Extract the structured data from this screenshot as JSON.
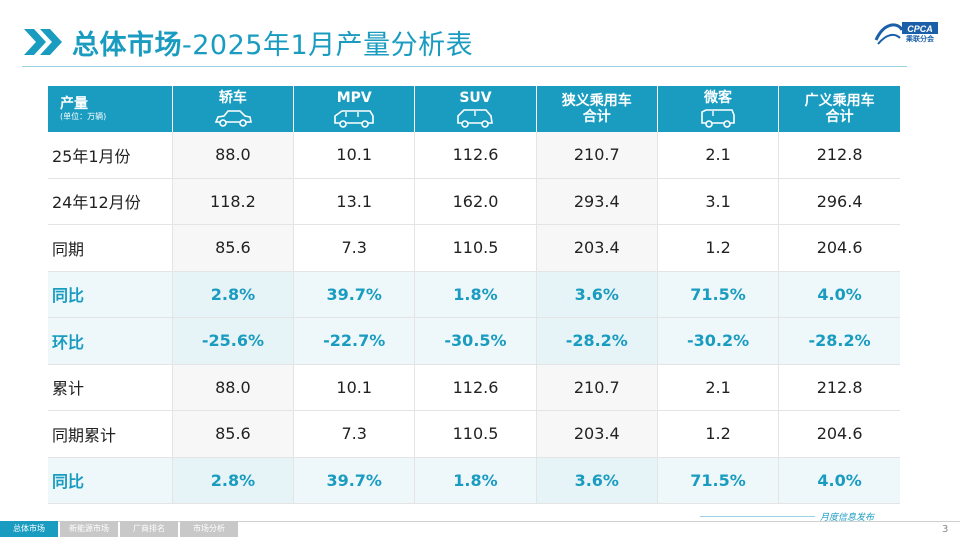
{
  "header": {
    "title_bold": "总体市场",
    "title_rest": "-2025年1月产量分析表",
    "logo_text": "CPCA",
    "logo_sub": "乘联分会"
  },
  "table": {
    "header_first": "产量",
    "header_unit": "(单位：万辆)",
    "columns": [
      {
        "line1": "轿车",
        "line2": "",
        "icon": "sedan-icon"
      },
      {
        "line1": "MPV",
        "line2": "",
        "icon": "mpv-icon"
      },
      {
        "line1": "SUV",
        "line2": "",
        "icon": "suv-icon"
      },
      {
        "line1": "狭义乘用车",
        "line2": "合计",
        "icon": ""
      },
      {
        "line1": "微客",
        "line2": "",
        "icon": "minivan-icon"
      },
      {
        "line1": "广义乘用车",
        "line2": "合计",
        "icon": ""
      }
    ],
    "rows": [
      {
        "label": "25年1月份",
        "values": [
          "88.0",
          "10.1",
          "112.6",
          "210.7",
          "2.1",
          "212.8"
        ],
        "highlight": false
      },
      {
        "label": "24年12月份",
        "values": [
          "118.2",
          "13.1",
          "162.0",
          "293.4",
          "3.1",
          "296.4"
        ],
        "highlight": false
      },
      {
        "label": "同期",
        "values": [
          "85.6",
          "7.3",
          "110.5",
          "203.4",
          "1.2",
          "204.6"
        ],
        "highlight": false
      },
      {
        "label": "同比",
        "values": [
          "2.8%",
          "39.7%",
          "1.8%",
          "3.6%",
          "71.5%",
          "4.0%"
        ],
        "highlight": true
      },
      {
        "label": "环比",
        "values": [
          "-25.6%",
          "-22.7%",
          "-30.5%",
          "-28.2%",
          "-30.2%",
          "-28.2%"
        ],
        "highlight": true
      },
      {
        "label": "累计",
        "values": [
          "88.0",
          "10.1",
          "112.6",
          "210.7",
          "2.1",
          "212.8"
        ],
        "highlight": false
      },
      {
        "label": "同期累计",
        "values": [
          "85.6",
          "7.3",
          "110.5",
          "203.4",
          "1.2",
          "204.6"
        ],
        "highlight": false
      },
      {
        "label": "同比",
        "values": [
          "2.8%",
          "39.7%",
          "1.8%",
          "3.6%",
          "71.5%",
          "4.0%"
        ],
        "highlight": true
      }
    ]
  },
  "footer": {
    "tabs": [
      "总体市场",
      "新能源市场",
      "厂商排名",
      "市场分析"
    ],
    "active_tab": 0,
    "monthly_label": "月度信息发布",
    "page_number": "3"
  },
  "colors": {
    "accent": "#1a9cc0",
    "highlight_row_bg": "#eef8fb",
    "grid": "#e4e4e4"
  }
}
